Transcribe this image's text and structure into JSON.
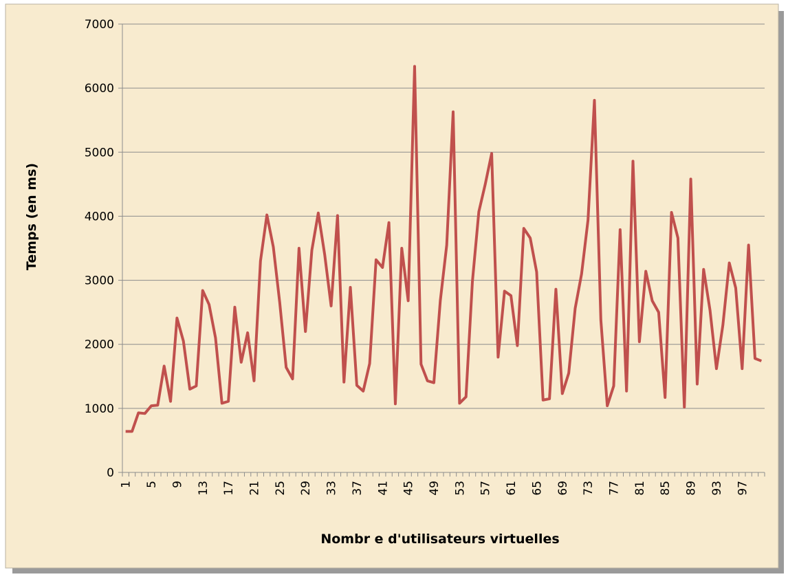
{
  "chart_data": {
    "type": "line",
    "x_label": "Nombr e d'utilisateurs virtuelles",
    "y_label": "Temps (en ms)",
    "categories": [
      "1",
      null,
      null,
      null,
      "5",
      null,
      null,
      null,
      "9",
      null,
      null,
      null,
      "13",
      null,
      null,
      null,
      "17",
      null,
      null,
      null,
      "21",
      null,
      null,
      null,
      "25",
      null,
      null,
      null,
      "29",
      null,
      null,
      null,
      "33",
      null,
      null,
      null,
      "37",
      null,
      null,
      null,
      "41",
      null,
      null,
      null,
      "45",
      null,
      null,
      null,
      "49",
      null,
      null,
      null,
      "53",
      null,
      null,
      null,
      "57",
      null,
      null,
      null,
      "61",
      null,
      null,
      null,
      "65",
      null,
      null,
      null,
      "69",
      null,
      null,
      null,
      "73",
      null,
      null,
      null,
      "77",
      null,
      null,
      null,
      "81",
      null,
      null,
      null,
      "85",
      null,
      null,
      null,
      "89",
      null,
      null,
      null,
      "93",
      null,
      null,
      null,
      "97",
      null,
      null,
      null
    ],
    "series": [
      {
        "color": "#c0504d",
        "values": [
          640,
          640,
          930,
          920,
          1040,
          1050,
          1660,
          1110,
          2410,
          2050,
          1300,
          1350,
          2840,
          2620,
          2100,
          1080,
          1110,
          2580,
          1720,
          2180,
          1430,
          3300,
          4020,
          3520,
          2650,
          1640,
          1460,
          3500,
          2200,
          3470,
          4050,
          3400,
          2600,
          4010,
          1410,
          2890,
          1360,
          1270,
          1700,
          3320,
          3200,
          3900,
          1070,
          3500,
          2680,
          6340,
          1690,
          1430,
          1400,
          2680,
          3550,
          5630,
          1080,
          1180,
          2980,
          4070,
          4500,
          4980,
          1800,
          2830,
          2760,
          1980,
          3810,
          3660,
          3130,
          1130,
          1150,
          2860,
          1230,
          1550,
          2560,
          3100,
          3940,
          5810,
          2380,
          1040,
          1350,
          3790,
          1270,
          4860,
          2040,
          3140,
          2680,
          2500,
          1170,
          4060,
          3660,
          1020,
          4580,
          1380,
          3170,
          2530,
          1620,
          2300,
          3270,
          2880,
          1620,
          3550,
          1780,
          1740
        ]
      }
    ],
    "ylim": [
      0,
      7000
    ],
    "yticks": [
      0,
      1000,
      2000,
      3000,
      4000,
      5000,
      6000,
      7000
    ],
    "grid": true
  }
}
